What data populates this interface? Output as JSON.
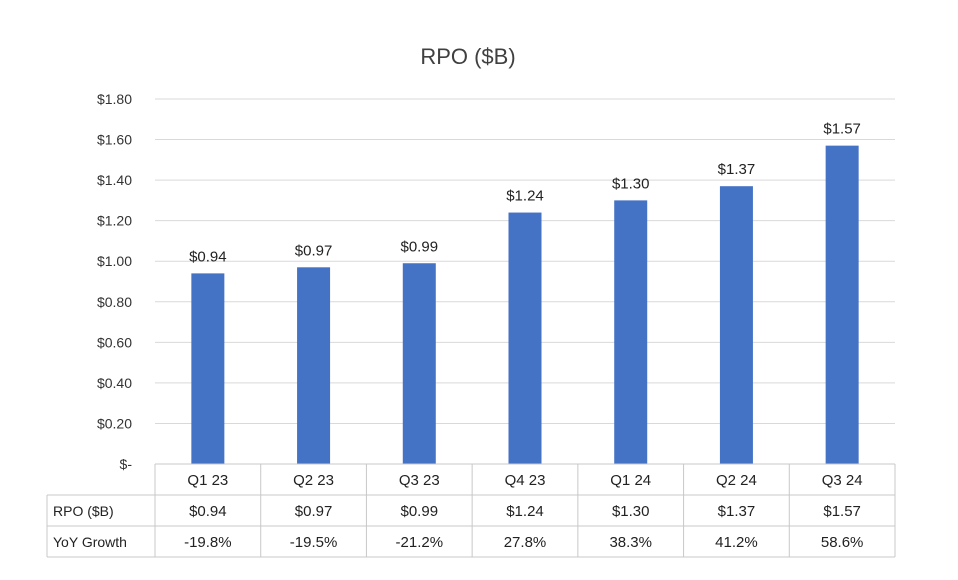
{
  "chart_data": {
    "type": "bar",
    "title": "RPO ($B)",
    "categories": [
      "Q1 23",
      "Q2 23",
      "Q3 23",
      "Q4 23",
      "Q1 24",
      "Q2 24",
      "Q3 24"
    ],
    "values": [
      0.94,
      0.97,
      0.99,
      1.24,
      1.3,
      1.37,
      1.57
    ],
    "value_labels": [
      "$0.94",
      "$0.97",
      "$0.99",
      "$1.24",
      "$1.30",
      "$1.37",
      "$1.57"
    ],
    "ylim": [
      0,
      1.8
    ],
    "yticks": [
      0,
      0.2,
      0.4,
      0.6,
      0.8,
      1.0,
      1.2,
      1.4,
      1.6,
      1.8
    ],
    "ytick_labels": [
      "$-",
      "$0.20",
      "$0.40",
      "$0.60",
      "$0.80",
      "$1.00",
      "$1.20",
      "$1.40",
      "$1.60",
      "$1.80"
    ],
    "grid": true,
    "bar_color": "#4472C4",
    "data_table": {
      "rows": [
        {
          "header": "RPO ($B)",
          "cells": [
            "$0.94",
            "$0.97",
            "$0.99",
            "$1.24",
            "$1.30",
            "$1.37",
            "$1.57"
          ]
        },
        {
          "header": "YoY Growth",
          "cells": [
            "-19.8%",
            "-19.5%",
            "-21.2%",
            "27.8%",
            "38.3%",
            "41.2%",
            "58.6%"
          ]
        }
      ]
    }
  }
}
